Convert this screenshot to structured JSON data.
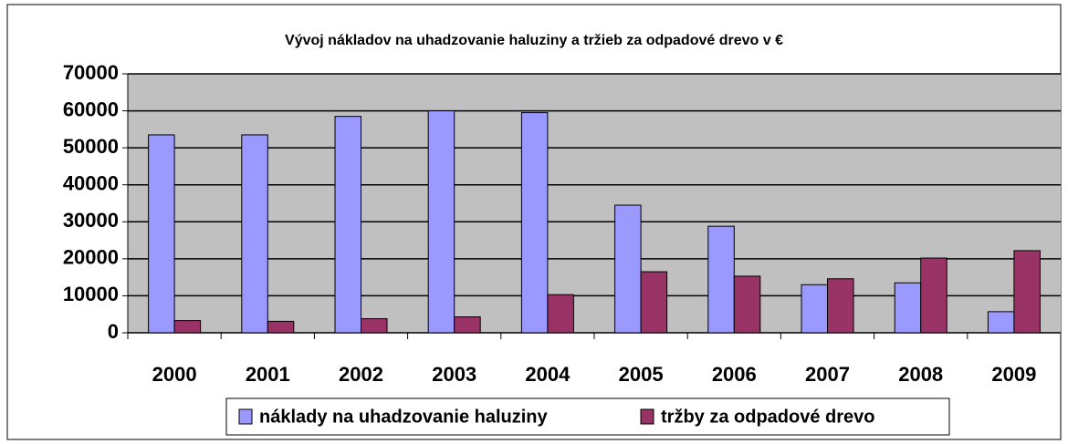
{
  "chart_data": {
    "type": "bar",
    "title": "Vývoj nákladov na uhadzovanie haluziny a tržieb za odpadové drevo v €",
    "categories": [
      "2000",
      "2001",
      "2002",
      "2003",
      "2004",
      "2005",
      "2006",
      "2007",
      "2008",
      "2009"
    ],
    "series": [
      {
        "name": "náklady na uhadzovanie haluziny",
        "color": "#9999ff",
        "values": [
          53500,
          53500,
          58500,
          60000,
          59500,
          34500,
          28800,
          13000,
          13500,
          5700
        ]
      },
      {
        "name": "tržby za odpadové drevo",
        "color": "#993366",
        "values": [
          3300,
          3100,
          3800,
          4300,
          10300,
          16500,
          15300,
          14600,
          20200,
          22200
        ]
      }
    ],
    "ylim": [
      0,
      70000
    ],
    "yticks": [
      0,
      10000,
      20000,
      30000,
      40000,
      50000,
      60000,
      70000
    ],
    "grid": true,
    "legend": "bottom"
  }
}
